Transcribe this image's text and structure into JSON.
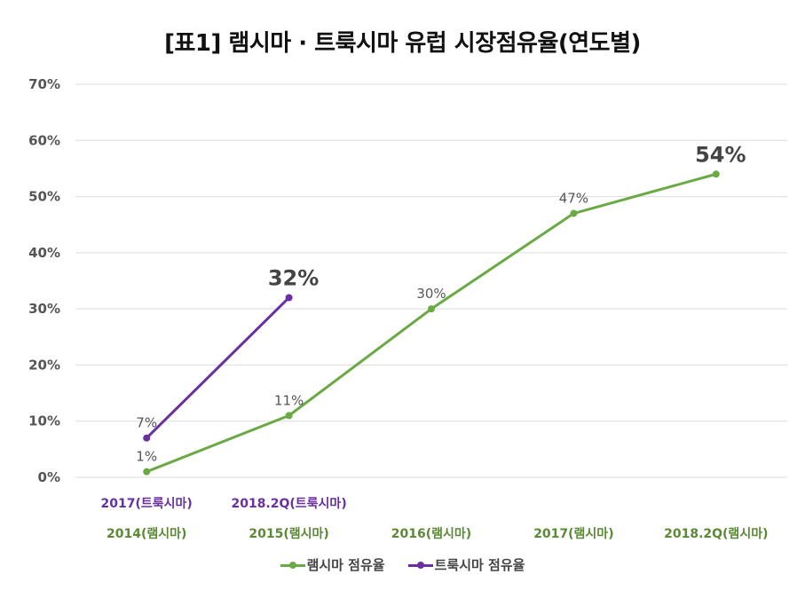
{
  "chart_data": {
    "type": "line",
    "title": "[표1] 램시마 · 트룩시마 유럽 시장점유율(연도별)",
    "xlabel": "",
    "ylabel": "",
    "ylim": [
      0,
      70
    ],
    "yticks": [
      0,
      10,
      20,
      30,
      40,
      50,
      60,
      70
    ],
    "ytick_labels": [
      "0%",
      "10%",
      "20%",
      "30%",
      "40%",
      "50%",
      "60%",
      "70%"
    ],
    "grid": true,
    "legend_position": "bottom",
    "categories": [
      "2014(램시마)",
      "2015(램시마)",
      "2016(램시마)",
      "2017(램시마)",
      "2018.2Q(램시마)"
    ],
    "secondary_categories": [
      "2017(트룩시마)",
      "2018.2Q(트룩시마)"
    ],
    "series": [
      {
        "name": "램시마 점유율",
        "color": "#6aaa44",
        "values": [
          1,
          11,
          30,
          47,
          54
        ],
        "labels": [
          "1%",
          "11%",
          "30%",
          "47%",
          "54%"
        ],
        "emphasized_index": 4
      },
      {
        "name": "트룩시마 점유율",
        "color": "#6a2fa0",
        "values": [
          7,
          32
        ],
        "labels": [
          "7%",
          "32%"
        ],
        "emphasized_index": 1
      }
    ],
    "category_label_colors": {
      "primary": "#5a8a36",
      "secondary": "#6a2fa0"
    }
  }
}
